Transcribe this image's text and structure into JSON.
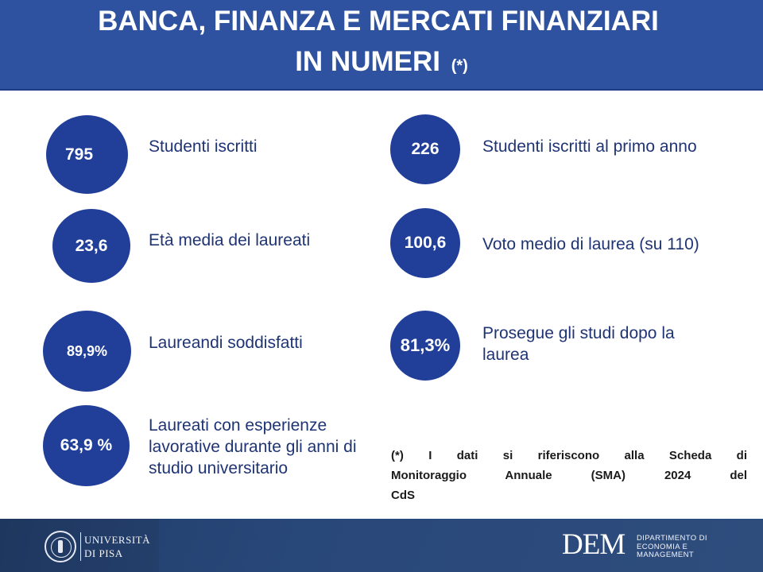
{
  "header": {
    "title_line1": "BANCA, FINANZA E MERCATI FINANZIARI",
    "title_line2": "IN NUMERI",
    "title_mark": "(*)"
  },
  "stats_left": [
    {
      "value": "795",
      "label": "Studenti iscritti"
    },
    {
      "value": "23,6",
      "label": "Età media dei laureati"
    },
    {
      "value": "89,9%",
      "label": "Laureandi soddisfatti"
    },
    {
      "value": "63,9 %",
      "label": "Laureati con esperienze lavorative durante gli anni di studio universitario"
    }
  ],
  "stats_right": [
    {
      "value": "226",
      "label": "Studenti iscritti al primo anno"
    },
    {
      "value": "100,6",
      "label": "Voto medio di laurea (su 110)"
    },
    {
      "value": "81,3%",
      "label": "Prosegue gli studi dopo la laurea"
    }
  ],
  "note": {
    "line1": "(*)   I dati si riferiscono alla Scheda di",
    "line2": "Monitoraggio Annuale (SMA) 2024 del",
    "line3": "CdS"
  },
  "footer": {
    "university_line1": "UNIVERSITÀ",
    "university_line2": "DI PISA",
    "dem_logo": "DEM",
    "dem_line1": "DIPARTIMENTO DI",
    "dem_line2": "ECONOMIA E",
    "dem_line3": "MANAGEMENT"
  },
  "colors": {
    "header_bg": "#2f52a0",
    "circle_bg": "#213f99",
    "label_text": "#1f3474",
    "footer_bg": "#1f3d6a"
  }
}
